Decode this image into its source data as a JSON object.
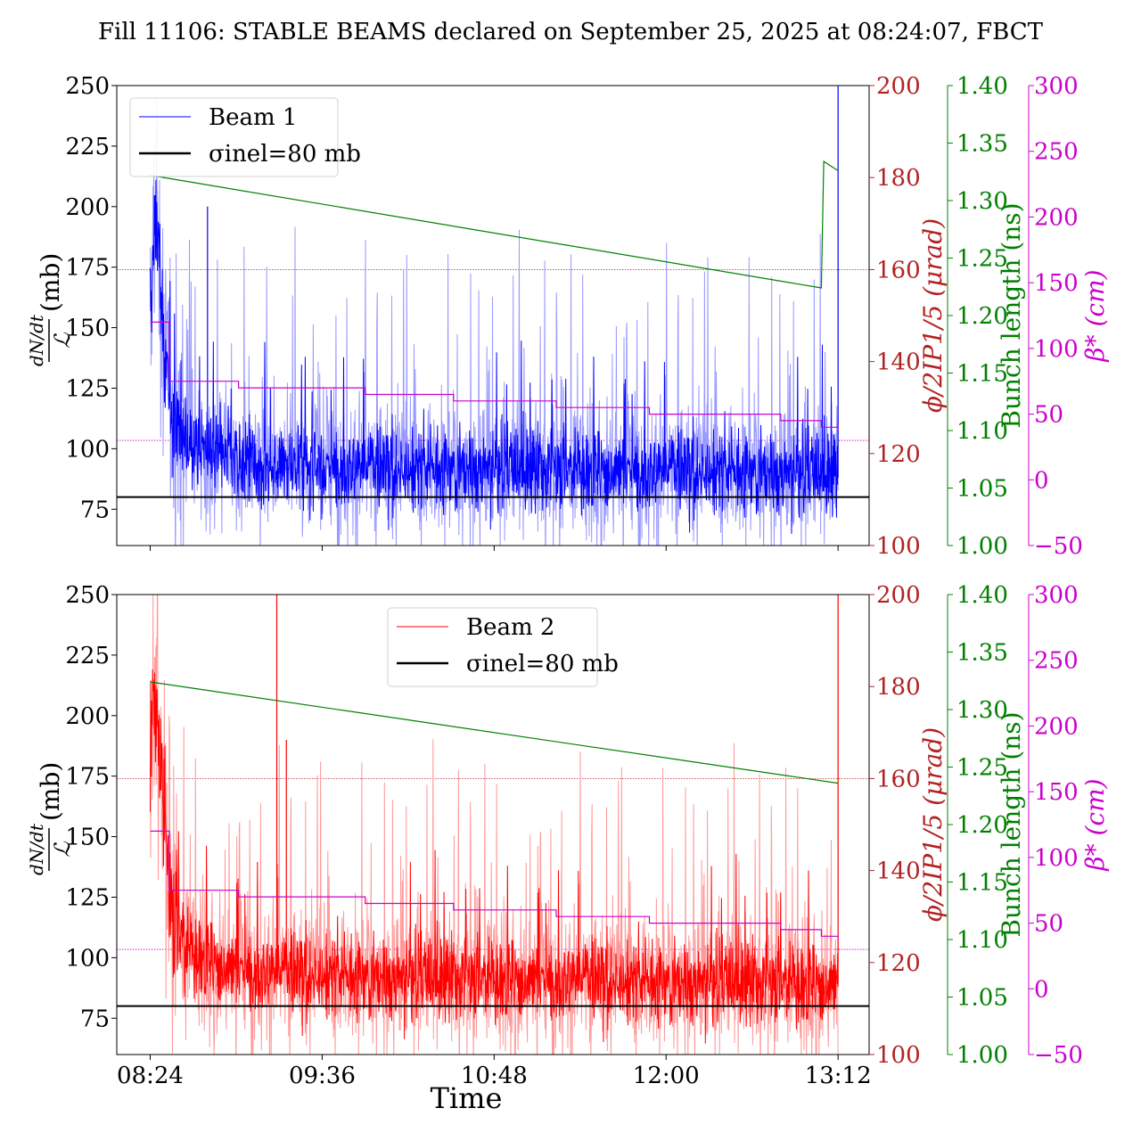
{
  "title": "Fill 11106: STABLE BEAMS declared on September 25, 2025 at 08:24:07, FBCT",
  "colors": {
    "beam1": "#0000ff",
    "beam1_light": "#9999ff",
    "beam2": "#ff0000",
    "beam2_light": "#ff9999",
    "sigma": "#000000",
    "phi": "#b22222",
    "bunch": "#008000",
    "beta": "#cc00cc"
  },
  "chart_data": [
    {
      "type": "line",
      "panel": "top",
      "x_axis": {
        "label": "Time",
        "range": [
          "08:10",
          "13:25"
        ],
        "ticks": [
          "08:24",
          "09:36",
          "10:48",
          "12:00",
          "13:12"
        ],
        "tick_labels_shown": false
      },
      "y_axis_left": {
        "label": "dN/dt / L (mb)",
        "range": [
          60,
          250
        ],
        "ticks": [
          "75",
          "100",
          "125",
          "150",
          "175",
          "200",
          "225",
          "250"
        ]
      },
      "y_axis_phi": {
        "label": "φ/2 IP1/5 (μrad)",
        "range": [
          100,
          200
        ],
        "ticks": [
          "100",
          "120",
          "140",
          "160",
          "180",
          "200"
        ]
      },
      "y_axis_bunch": {
        "label": "Bunch length (ns)",
        "range": [
          1.0,
          1.4
        ],
        "ticks": [
          "1.00",
          "1.05",
          "1.10",
          "1.15",
          "1.20",
          "1.25",
          "1.30",
          "1.35",
          "1.40"
        ]
      },
      "y_axis_beta": {
        "label": "β* (cm)",
        "range": [
          -50,
          300
        ],
        "ticks": [
          "−50",
          "0",
          "50",
          "100",
          "150",
          "200",
          "250",
          "300"
        ]
      },
      "legend": {
        "placement": "top-left",
        "entries": [
          "Beam 1",
          "σinel=80 mb"
        ]
      },
      "series": [
        {
          "name": "Beam 1",
          "axis": "left",
          "description": "noisy cross-section, approx. samples (time, mb)",
          "x": [
            "08:24",
            "08:26",
            "08:28",
            "08:30",
            "08:33",
            "08:36",
            "08:40",
            "08:50",
            "09:00",
            "09:15",
            "09:36",
            "10:00",
            "10:48",
            "11:30",
            "12:00",
            "12:30",
            "13:00",
            "13:12"
          ],
          "values": [
            150,
            200,
            175,
            140,
            115,
            110,
            102,
            98,
            95,
            94,
            93,
            92,
            92,
            91,
            91,
            91,
            90,
            90
          ]
        },
        {
          "name": "σinel=80 mb",
          "axis": "left",
          "x": [
            "08:10",
            "13:25"
          ],
          "values": [
            80,
            80
          ]
        },
        {
          "axis": "bunch",
          "x": [
            "08:24",
            "13:05",
            "13:06",
            "13:12"
          ],
          "values": [
            1.322,
            1.224,
            1.334,
            1.326
          ]
        },
        {
          "axis": "beta",
          "x": [
            "08:24",
            "08:32",
            "09:01",
            "09:54",
            "10:31",
            "11:14",
            "11:53",
            "12:48",
            "13:05",
            "13:12"
          ],
          "values": [
            120,
            75,
            70,
            65,
            60,
            55,
            50,
            45,
            40,
            38
          ]
        }
      ],
      "reference_lines": {
        "phi": 160,
        "beta_level": 30
      }
    },
    {
      "type": "line",
      "panel": "bottom",
      "x_axis": {
        "label": "Time",
        "range": [
          "08:10",
          "13:25"
        ],
        "ticks": [
          "08:24",
          "09:36",
          "10:48",
          "12:00",
          "13:12"
        ],
        "tick_labels_shown": true
      },
      "y_axis_left": {
        "label": "dN/dt / L (mb)",
        "range": [
          60,
          250
        ],
        "ticks": [
          "75",
          "100",
          "125",
          "150",
          "175",
          "200",
          "225",
          "250"
        ]
      },
      "y_axis_phi": {
        "label": "φ/2 IP1/5 (μrad)",
        "range": [
          100,
          200
        ],
        "ticks": [
          "100",
          "120",
          "140",
          "160",
          "180",
          "200"
        ]
      },
      "y_axis_bunch": {
        "label": "Bunch length (ns)",
        "range": [
          1.0,
          1.4
        ],
        "ticks": [
          "1.00",
          "1.05",
          "1.10",
          "1.15",
          "1.20",
          "1.25",
          "1.30",
          "1.35",
          "1.40"
        ]
      },
      "y_axis_beta": {
        "label": "β* (cm)",
        "range": [
          -50,
          300
        ],
        "ticks": [
          "−50",
          "0",
          "50",
          "100",
          "150",
          "200",
          "250",
          "300"
        ]
      },
      "legend": {
        "placement": "top-center",
        "entries": [
          "Beam 2",
          "σinel=80 mb"
        ]
      },
      "series": [
        {
          "name": "Beam 2",
          "axis": "left",
          "description": "noisy cross-section, approx. samples (time, mb)",
          "x": [
            "08:24",
            "08:26",
            "08:28",
            "08:30",
            "08:33",
            "08:36",
            "08:40",
            "08:50",
            "09:00",
            "09:15",
            "09:36",
            "10:00",
            "10:48",
            "11:30",
            "12:00",
            "12:30",
            "13:00",
            "13:12"
          ],
          "values": [
            180,
            210,
            190,
            150,
            120,
            110,
            103,
            98,
            95,
            94,
            93,
            92,
            91,
            91,
            90,
            90,
            89,
            89
          ]
        },
        {
          "name": "σinel=80 mb",
          "axis": "left",
          "x": [
            "08:10",
            "13:25"
          ],
          "values": [
            80,
            80
          ]
        },
        {
          "axis": "bunch",
          "x": [
            "08:24",
            "13:12"
          ],
          "values": [
            1.324,
            1.236
          ]
        },
        {
          "axis": "beta",
          "x": [
            "08:24",
            "08:32",
            "09:01",
            "09:54",
            "10:31",
            "11:14",
            "11:53",
            "12:48",
            "13:05",
            "13:12"
          ],
          "values": [
            120,
            75,
            70,
            65,
            60,
            55,
            50,
            45,
            40,
            38
          ]
        }
      ],
      "reference_lines": {
        "phi": 160,
        "beta_level": 30
      }
    }
  ]
}
